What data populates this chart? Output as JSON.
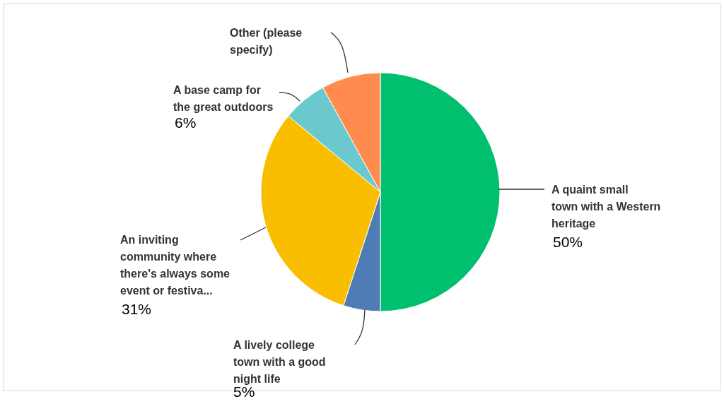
{
  "chart_data": {
    "type": "pie",
    "categories": [
      "A quaint small town with a Western heritage",
      "A lively college town with a good night life",
      "An inviting community where there's always some event or festiva...",
      "A base camp for the great outdoors",
      "Other (please specify)"
    ],
    "values": [
      50,
      5,
      31,
      6,
      8
    ],
    "colors": [
      "#00bf6f",
      "#507cb6",
      "#f9be00",
      "#6bc8cd",
      "#ff8b4f"
    ],
    "value_labels": [
      "50%",
      "5%",
      "31%",
      "6%",
      null
    ]
  }
}
